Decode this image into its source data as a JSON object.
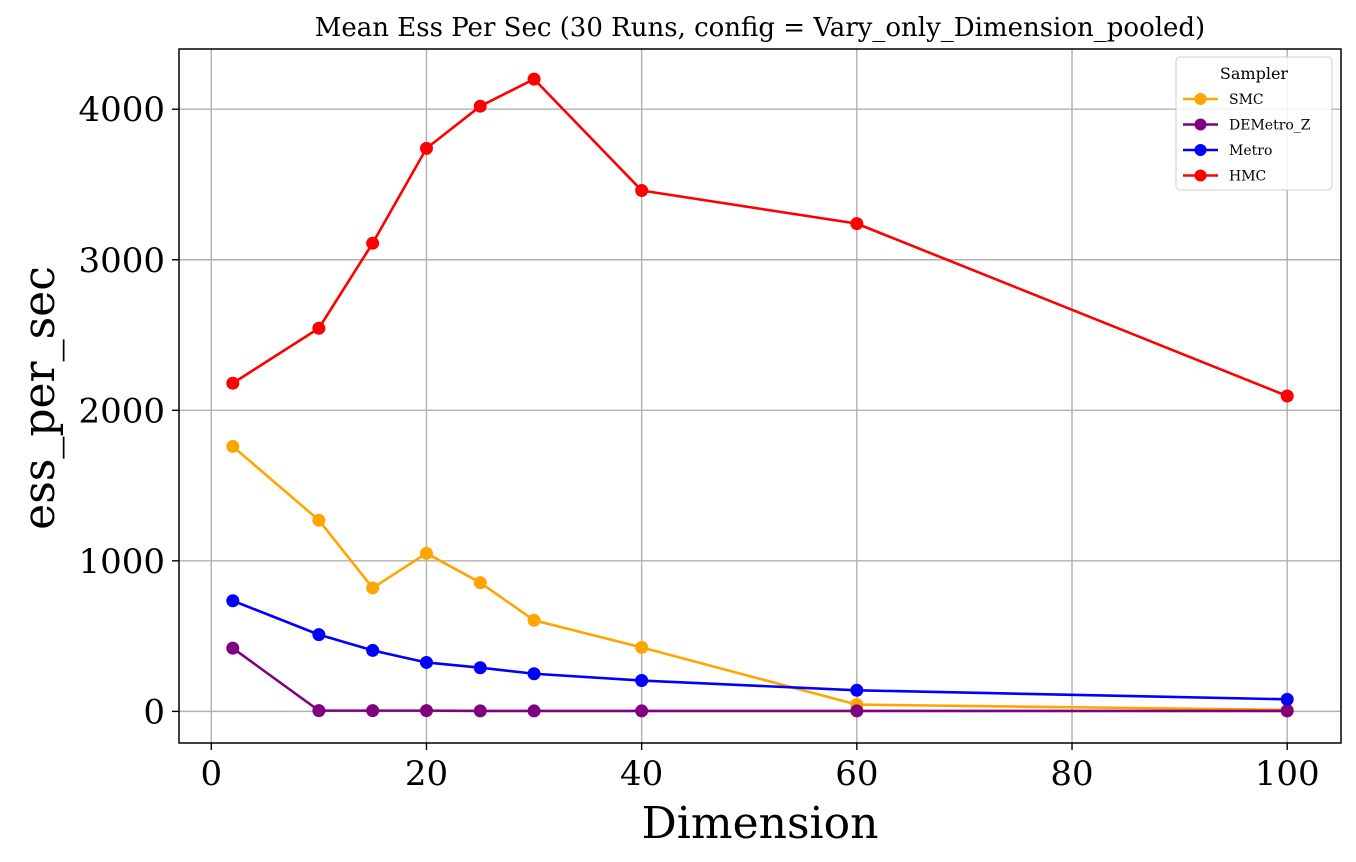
{
  "chart_data": {
    "type": "line",
    "title": "Mean Ess Per Sec (30 Runs, config = Vary_only_Dimension_pooled)",
    "xlabel": "Dimension",
    "ylabel": "ess_per_sec",
    "xlim": [
      -3,
      105
    ],
    "ylim": [
      -210,
      4400
    ],
    "xticks": [
      0,
      20,
      40,
      60,
      80,
      100
    ],
    "yticks": [
      0,
      1000,
      2000,
      3000,
      4000
    ],
    "grid": true,
    "legend": {
      "title": "Sampler",
      "position": "top-right"
    },
    "x": [
      2,
      10,
      15,
      20,
      25,
      30,
      40,
      60,
      100
    ],
    "series": [
      {
        "name": "SMC",
        "color": "#ffa500",
        "values": [
          1760,
          1270,
          820,
          1050,
          855,
          605,
          425,
          45,
          10
        ]
      },
      {
        "name": "DEMetro_Z",
        "color": "#800080",
        "values": [
          420,
          5,
          5,
          5,
          3,
          3,
          3,
          3,
          3
        ]
      },
      {
        "name": "Metro",
        "color": "#0000ff",
        "values": [
          735,
          510,
          405,
          325,
          290,
          250,
          205,
          140,
          80
        ]
      },
      {
        "name": "HMC",
        "color": "#ff0000",
        "values": [
          2180,
          2545,
          3110,
          3740,
          4020,
          4200,
          3460,
          3240,
          2095
        ]
      }
    ]
  }
}
